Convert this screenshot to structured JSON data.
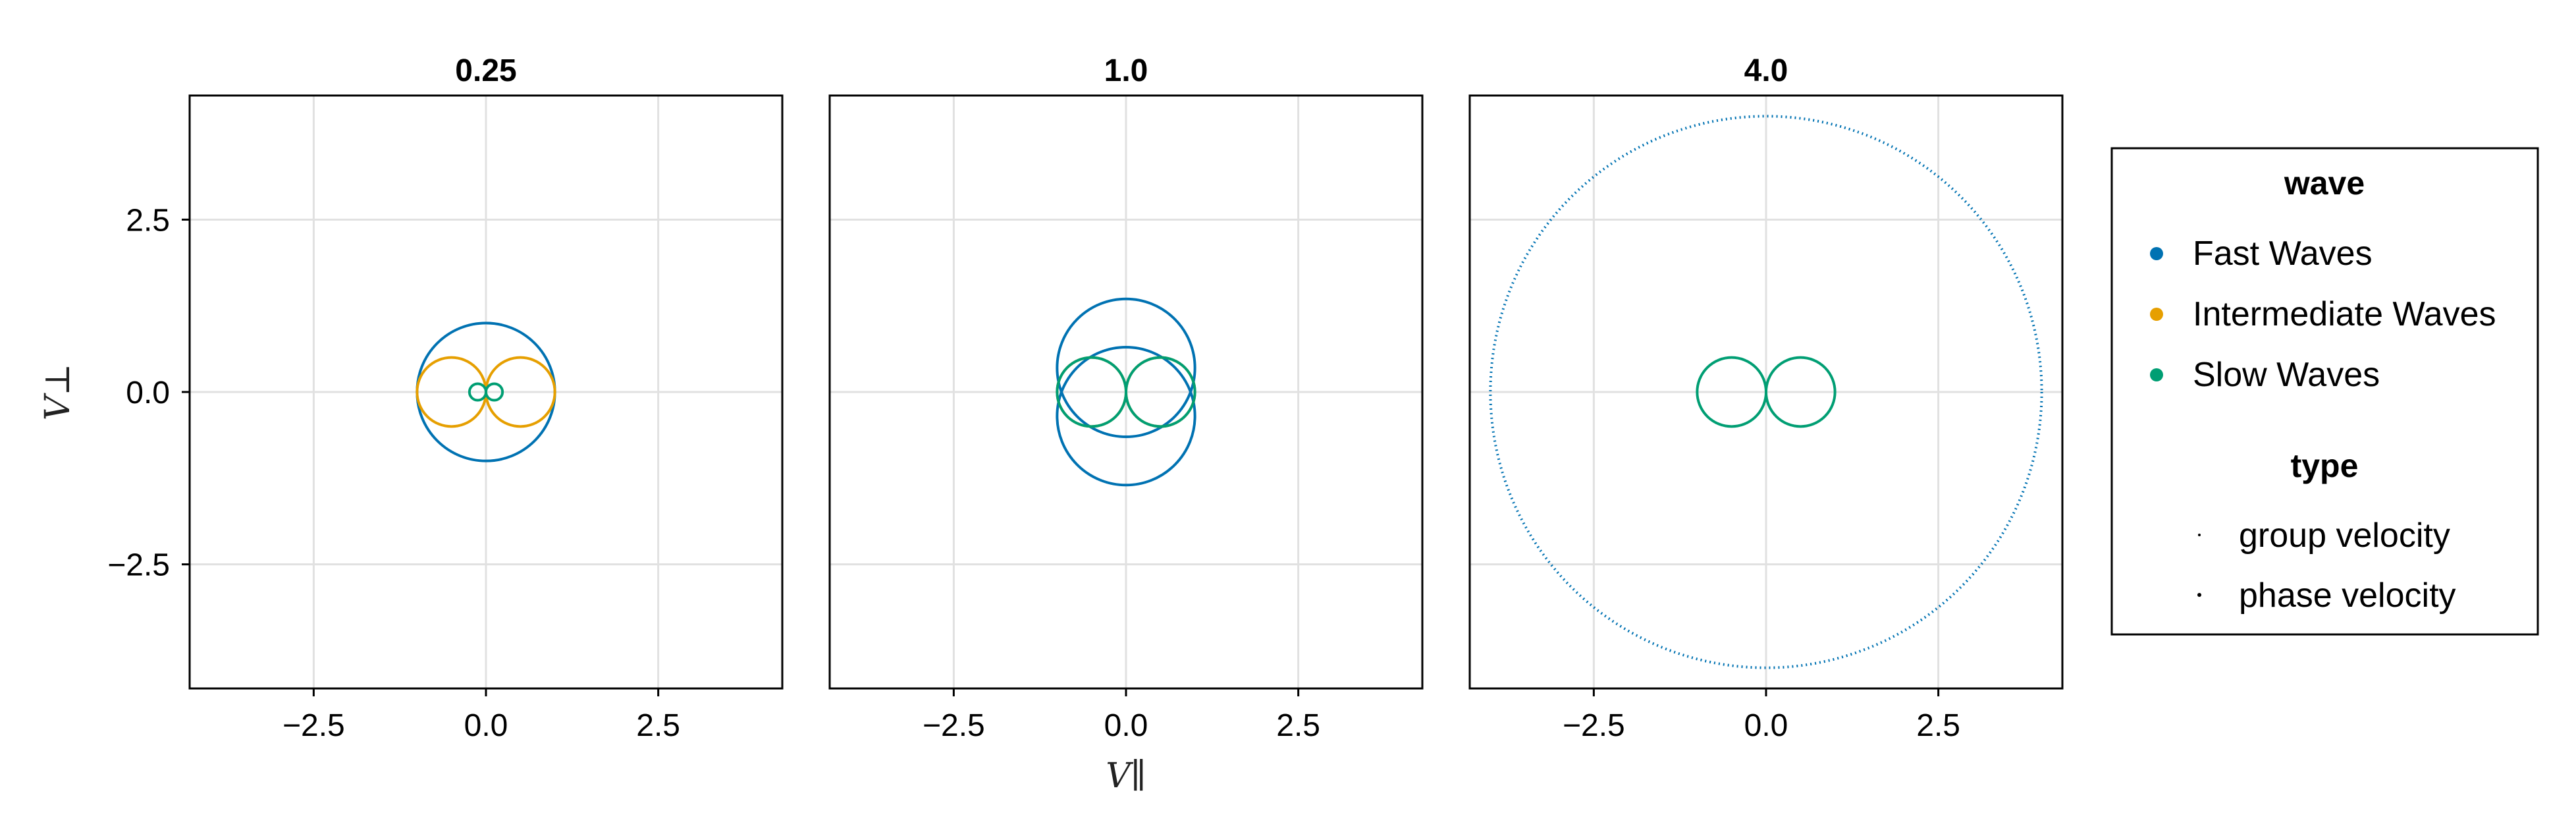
{
  "colors": {
    "fast": "#0072b2",
    "intermediate": "#e69f00",
    "slow": "#009e73"
  },
  "ylabel": "V⊥",
  "xlabel": "V∥",
  "legend": {
    "wave_title": "wave",
    "wave_items": [
      "Fast Waves",
      "Intermediate Waves",
      "Slow Waves"
    ],
    "type_title": "type",
    "type_items": [
      "group velocity",
      "phase velocity"
    ]
  },
  "chart_data": [
    {
      "type": "line",
      "title": "0.25",
      "xlim": [
        -4.3,
        4.3
      ],
      "ylim": [
        -4.3,
        4.3
      ],
      "xticks": [
        -2.5,
        0.0,
        2.5
      ],
      "yticks": [
        -2.5,
        0.0,
        2.5
      ],
      "xtick_labels": [
        "−2.5",
        "0.0",
        "2.5"
      ],
      "ytick_labels": [
        "−2.5",
        "0.0",
        "2.5"
      ],
      "grid": true,
      "series": [
        {
          "name": "Fast Waves",
          "kind": "circle",
          "radius": 1.0,
          "centers": [
            [
              0,
              0
            ]
          ]
        },
        {
          "name": "Intermediate Waves",
          "kind": "circle",
          "radius": 0.5,
          "centers": [
            [
              -0.5,
              0
            ],
            [
              0.5,
              0
            ]
          ]
        },
        {
          "name": "Slow Waves",
          "kind": "circle",
          "radius": 0.12,
          "centers": [
            [
              -0.12,
              0
            ],
            [
              0.12,
              0
            ]
          ]
        }
      ]
    },
    {
      "type": "line",
      "title": "1.0",
      "xlim": [
        -4.3,
        4.3
      ],
      "ylim": [
        -4.3,
        4.3
      ],
      "xticks": [
        -2.5,
        0.0,
        2.5
      ],
      "yticks": [
        -2.5,
        0.0,
        2.5
      ],
      "xtick_labels": [
        "−2.5",
        "0.0",
        "2.5"
      ],
      "ytick_labels": [
        "−2.5",
        "0.0",
        "2.5"
      ],
      "grid": true,
      "series": [
        {
          "name": "Fast Waves",
          "kind": "circle",
          "radius": 1.0,
          "centers": [
            [
              0,
              0.35
            ],
            [
              0,
              -0.35
            ]
          ]
        },
        {
          "name": "Intermediate Waves",
          "kind": "circle",
          "radius": 0.5,
          "centers": [
            [
              -0.5,
              0
            ],
            [
              0.5,
              0
            ]
          ]
        },
        {
          "name": "Slow Waves",
          "kind": "circle",
          "radius": 0.5,
          "centers": [
            [
              -0.5,
              0
            ],
            [
              0.5,
              0
            ]
          ]
        }
      ]
    },
    {
      "type": "line",
      "title": "4.0",
      "xlim": [
        -4.3,
        4.3
      ],
      "ylim": [
        -4.3,
        4.3
      ],
      "xticks": [
        -2.5,
        0.0,
        2.5
      ],
      "yticks": [
        -2.5,
        0.0,
        2.5
      ],
      "xtick_labels": [
        "−2.5",
        "0.0",
        "2.5"
      ],
      "ytick_labels": [
        "−2.5",
        "0.0",
        "2.5"
      ],
      "grid": true,
      "series": [
        {
          "name": "Fast Waves",
          "kind": "circle",
          "radius": 4.0,
          "dotted": true,
          "centers": [
            [
              0,
              0
            ]
          ]
        },
        {
          "name": "Slow Waves",
          "kind": "circle",
          "radius": 0.5,
          "centers": [
            [
              -0.5,
              0
            ],
            [
              0.5,
              0
            ]
          ]
        }
      ]
    }
  ]
}
